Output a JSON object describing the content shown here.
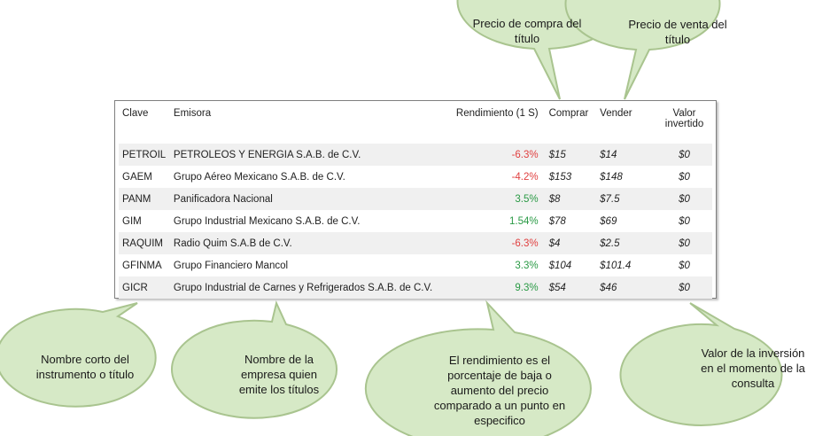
{
  "callouts": {
    "precio_compra": "Precio de compra del título",
    "precio_venta": "Precio de venta del título",
    "clave": "Nombre corto del instrumento o título",
    "emisora": "Nombre de la empresa quien emite los títulos",
    "rendimiento": "El rendimiento es el porcentaje de baja o aumento del precio comparado a un punto en especifico",
    "valor": "Valor de la inversión en el momento de la consulta"
  },
  "table": {
    "headers": {
      "clave": "Clave",
      "emisora": "Emisora",
      "rendimiento": "Rendimiento (1 S)",
      "comprar": "Comprar",
      "vender": "Vender",
      "valor": "Valor invertido"
    },
    "rows": [
      {
        "clave": "PETROIL",
        "emisora": "PETROLEOS Y ENERGIA S.A.B. de C.V.",
        "rendimiento": "-6.3%",
        "trend": "neg",
        "comprar": "$15",
        "vender": "$14",
        "valor": "$0"
      },
      {
        "clave": "GAEM",
        "emisora": "Grupo Aéreo Mexicano S.A.B. de C.V.",
        "rendimiento": "-4.2%",
        "trend": "neg",
        "comprar": "$153",
        "vender": "$148",
        "valor": "$0"
      },
      {
        "clave": "PANM",
        "emisora": "Panificadora Nacional",
        "rendimiento": "3.5%",
        "trend": "pos",
        "comprar": "$8",
        "vender": "$7.5",
        "valor": "$0"
      },
      {
        "clave": "GIM",
        "emisora": "Grupo Industrial Mexicano S.A.B. de C.V.",
        "rendimiento": "1.54%",
        "trend": "pos",
        "comprar": "$78",
        "vender": "$69",
        "valor": "$0"
      },
      {
        "clave": "RAQUIM",
        "emisora": "Radio Quim S.A.B de C.V.",
        "rendimiento": "-6.3%",
        "trend": "neg",
        "comprar": "$4",
        "vender": "$2.5",
        "valor": "$0"
      },
      {
        "clave": "GFINMA",
        "emisora": "Grupo Financiero Mancol",
        "rendimiento": "3.3%",
        "trend": "pos",
        "comprar": "$104",
        "vender": "$101.4",
        "valor": "$0"
      },
      {
        "clave": "GICR",
        "emisora": "Grupo Industrial de Carnes y Refrigerados S.A.B. de C.V.",
        "rendimiento": "9.3%",
        "trend": "pos",
        "comprar": "$54",
        "vender": "$46",
        "valor": "$0"
      }
    ]
  },
  "colors": {
    "bubble_fill": "#d6e9c6",
    "bubble_stroke": "#a9c48f",
    "negative": "#e04040",
    "positive": "#2a9a45"
  }
}
